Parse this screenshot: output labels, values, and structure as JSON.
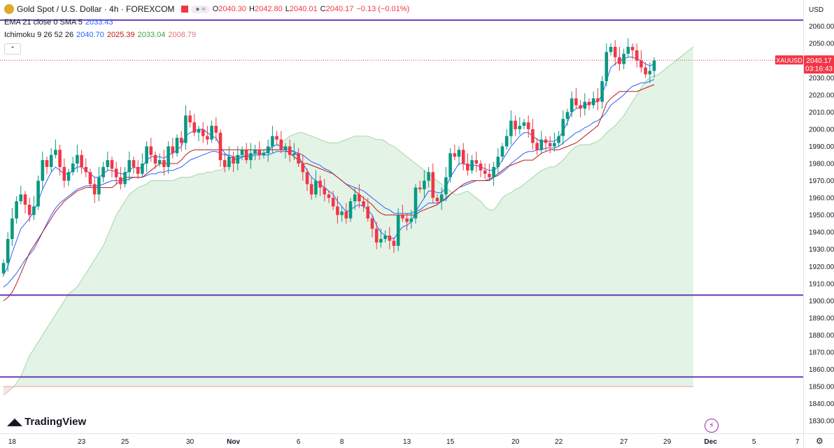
{
  "header": {
    "symbol_title": "Gold Spot / U.S. Dollar · 4h · FOREXCOM",
    "ohlc": {
      "o": "2040.30",
      "h": "2042.80",
      "l": "2040.01",
      "c": "2040.17",
      "change": "−0.13 (−0.01%)"
    },
    "ema_label": "EMA 21 close 0 SMA 5",
    "ema_value": "2033.43",
    "ichimoku_label": "Ichimoku 9 26 52 26",
    "ichimoku_values": [
      "2040.70",
      "2025.39",
      "2033.04",
      "2008.79"
    ],
    "collapse_icon": "chevron-up-icon"
  },
  "brand": {
    "name": "TradingView"
  },
  "axis": {
    "currency": "USD"
  },
  "colors": {
    "up": "#089981",
    "down": "#f23645",
    "ema": "#2962ff",
    "base": "#b71c1c",
    "cloud_bull": "#e3f3e6",
    "cloud_bear": "#fbe3e3",
    "hline": "#673ab7",
    "price_tag": "#f23645"
  },
  "chart_data": {
    "type": "candlestick",
    "symbol": "XAUUSD",
    "last_price": "2040.17",
    "countdown": "03:16:43",
    "ylim": [
      1826,
      2068
    ],
    "yticks": [
      1830,
      1840,
      1850,
      1860,
      1870,
      1880,
      1890,
      1900,
      1910,
      1920,
      1930,
      1940,
      1950,
      1960,
      1970,
      1980,
      1990,
      2000,
      2010,
      2020,
      2030,
      2040,
      2050,
      2060
    ],
    "xticks": [
      {
        "label": "18",
        "bar": 2
      },
      {
        "label": "23",
        "bar": 18
      },
      {
        "label": "25",
        "bar": 28
      },
      {
        "label": "30",
        "bar": 43
      },
      {
        "label": "Nov",
        "bar": 53
      },
      {
        "label": "6",
        "bar": 68
      },
      {
        "label": "8",
        "bar": 78
      },
      {
        "label": "13",
        "bar": 93
      },
      {
        "label": "15",
        "bar": 103
      },
      {
        "label": "20",
        "bar": 118
      },
      {
        "label": "22",
        "bar": 128
      },
      {
        "label": "27",
        "bar": 143
      },
      {
        "label": "29",
        "bar": 153
      },
      {
        "label": "Dec",
        "bar": 163
      },
      {
        "label": "5",
        "bar": 173
      },
      {
        "label": "7",
        "bar": 183
      }
    ],
    "horizontal_lines": [
      {
        "label": "",
        "value": 2063.6
      },
      {
        "label": "1903.32",
        "value": 1903.32
      },
      {
        "label": "1855.57",
        "value": 1855.57
      }
    ],
    "closes": [
      1922,
      1936,
      1948,
      1958,
      1962,
      1956,
      1950,
      1955,
      1970,
      1982,
      1978,
      1985,
      1988,
      1978,
      1970,
      1975,
      1980,
      1985,
      1978,
      1975,
      1968,
      1962,
      1972,
      1978,
      1982,
      1977,
      1972,
      1968,
      1975,
      1982,
      1978,
      1974,
      1980,
      1990,
      1985,
      1980,
      1982,
      1978,
      1990,
      1986,
      1995,
      1992,
      2008,
      2004,
      1998,
      2000,
      1996,
      1994,
      2002,
      1998,
      1982,
      1978,
      1984,
      1980,
      1985,
      1988,
      1982,
      1986,
      1988,
      1985,
      1986,
      1990,
      1996,
      1994,
      1988,
      1990,
      1985,
      1986,
      1980,
      1975,
      1968,
      1962,
      1970,
      1966,
      1962,
      1960,
      1955,
      1950,
      1952,
      1948,
      1958,
      1962,
      1958,
      1955,
      1948,
      1942,
      1934,
      1936,
      1938,
      1935,
      1932,
      1950,
      1948,
      1946,
      1948,
      1966,
      1965,
      1970,
      1975,
      1960,
      1958,
      1962,
      1972,
      1986,
      1984,
      1988,
      1980,
      1976,
      1982,
      1980,
      1976,
      1974,
      1972,
      1978,
      1984,
      1990,
      1996,
      2005,
      2000,
      2002,
      2004,
      2000,
      1992,
      1988,
      1994,
      1992,
      1990,
      1992,
      1996,
      2006,
      2010,
      2018,
      2014,
      2012,
      2016,
      2014,
      2018,
      2016,
      2028,
      2045,
      2048,
      2042,
      2038,
      2044,
      2048,
      2046,
      2040,
      2036,
      2032,
      2034,
      2040
    ],
    "series": [
      {
        "name": "EMA 21",
        "values": [
          1908,
          1910,
          1913,
          1916,
          1920,
          1924,
          1927,
          1930,
          1935,
          1940,
          1945,
          1950,
          1954,
          1957,
          1959,
          1961,
          1963,
          1965,
          1966,
          1967,
          1967,
          1967,
          1967,
          1968,
          1969,
          1970,
          1970,
          1970,
          1970,
          1971,
          1972,
          1972,
          1972,
          1973,
          1974,
          1974,
          1975,
          1975,
          1976,
          1976,
          1977,
          1978,
          1980,
          1982,
          1983,
          1984,
          1985,
          1986,
          1987,
          1987,
          1986,
          1985,
          1985,
          1984,
          1984,
          1984,
          1984,
          1984,
          1985,
          1985,
          1985,
          1985,
          1986,
          1987,
          1987,
          1987,
          1987,
          1987,
          1986,
          1985,
          1983,
          1981,
          1980,
          1979,
          1977,
          1976,
          1974,
          1972,
          1970,
          1968,
          1967,
          1966,
          1965,
          1964,
          1962,
          1960,
          1958,
          1956,
          1954,
          1953,
          1951,
          1951,
          1951,
          1951,
          1951,
          1952,
          1953,
          1955,
          1957,
          1957,
          1957,
          1958,
          1959,
          1962,
          1964,
          1966,
          1967,
          1968,
          1969,
          1970,
          1970,
          1970,
          1971,
          1972,
          1973,
          1975,
          1977,
          1980,
          1982,
          1984,
          1986,
          1987,
          1987,
          1988,
          1988,
          1989,
          1989,
          1989,
          1990,
          1992,
          1994,
          1996,
          1998,
          1999,
          2001,
          2002,
          2004,
          2005,
          2007,
          2010,
          2014,
          2016,
          2018,
          2020,
          2023,
          2025,
          2026,
          2027,
          2027,
          2028,
          2029
        ]
      },
      {
        "name": "Tenkan",
        "values": [
          1915,
          1920,
          1928,
          1935,
          1942,
          1945,
          1948,
          1952,
          1958,
          1965,
          1970,
          1975,
          1978,
          1976,
          1974,
          1974,
          1976,
          1978,
          1978,
          1976,
          1974,
          1972,
          1972,
          1974,
          1976,
          1976,
          1975,
          1974,
          1974,
          1976,
          1978,
          1977,
          1978,
          1982,
          1984,
          1984,
          1984,
          1983,
          1985,
          1986,
          1988,
          1990,
          1996,
          1998,
          1999,
          2000,
          2000,
          1998,
          1996,
          1995,
          1990,
          1986,
          1984,
          1983,
          1982,
          1984,
          1985,
          1985,
          1986,
          1986,
          1986,
          1987,
          1990,
          1991,
          1990,
          1989,
          1988,
          1987,
          1984,
          1980,
          1976,
          1972,
          1970,
          1968,
          1966,
          1964,
          1962,
          1958,
          1955,
          1952,
          1953,
          1955,
          1956,
          1955,
          1953,
          1950,
          1944,
          1940,
          1938,
          1937,
          1936,
          1940,
          1943,
          1944,
          1946,
          1952,
          1956,
          1960,
          1964,
          1964,
          1963,
          1963,
          1966,
          1972,
          1976,
          1980,
          1980,
          1979,
          1979,
          1979,
          1978,
          1977,
          1976,
          1976,
          1978,
          1982,
          1986,
          1990,
          1993,
          1996,
          1998,
          1998,
          1996,
          1994,
          1993,
          1993,
          1993,
          1993,
          1995,
          1999,
          2004,
          2010,
          2012,
          2013,
          2014,
          2015,
          2016,
          2016,
          2020,
          2028,
          2036,
          2038,
          2040,
          2041,
          2042,
          2042,
          2041,
          2040,
          2038,
          2037,
          2038
        ]
      },
      {
        "name": "Kijun",
        "values": [
          1900,
          1902,
          1905,
          1910,
          1916,
          1922,
          1928,
          1932,
          1936,
          1940,
          1944,
          1948,
          1952,
          1955,
          1958,
          1960,
          1962,
          1964,
          1965,
          1966,
          1966,
          1966,
          1966,
          1966,
          1966,
          1966,
          1968,
          1970,
          1972,
          1972,
          1972,
          1972,
          1972,
          1974,
          1976,
          1978,
          1980,
          1980,
          1980,
          1980,
          1980,
          1982,
          1985,
          1987,
          1988,
          1988,
          1988,
          1988,
          1988,
          1988,
          1988,
          1988,
          1988,
          1988,
          1988,
          1988,
          1988,
          1988,
          1988,
          1988,
          1988,
          1988,
          1988,
          1988,
          1988,
          1988,
          1986,
          1984,
          1982,
          1980,
          1980,
          1979,
          1978,
          1977,
          1976,
          1975,
          1974,
          1972,
          1970,
          1968,
          1966,
          1964,
          1962,
          1960,
          1958,
          1956,
          1953,
          1951,
          1950,
          1950,
          1950,
          1950,
          1950,
          1950,
          1950,
          1950,
          1952,
          1953,
          1954,
          1955,
          1956,
          1958,
          1960,
          1962,
          1964,
          1966,
          1968,
          1969,
          1970,
          1970,
          1970,
          1970,
          1970,
          1972,
          1974,
          1976,
          1978,
          1979,
          1980,
          1981,
          1982,
          1982,
          1982,
          1984,
          1986,
          1987,
          1988,
          1988,
          1988,
          1989,
          1990,
          1991,
          1992,
          1994,
          1996,
          1998,
          2000,
          2002,
          2008,
          2015,
          2018,
          2020,
          2022,
          2022,
          2022,
          2022,
          2022,
          2023,
          2024,
          2025,
          2026
        ]
      },
      {
        "name": "Senkou A",
        "values": [
          1845,
          1847,
          1849,
          1852,
          1856,
          1862,
          1868,
          1872,
          1876,
          1880,
          1884,
          1888,
          1892,
          1896,
          1900,
          1904,
          1906,
          1908,
          1912,
          1916,
          1920,
          1924,
          1928,
          1932,
          1938,
          1944,
          1950,
          1954,
          1958,
          1962,
          1964,
          1966,
          1967,
          1968,
          1970,
          1970,
          1970,
          1970,
          1970,
          1970,
          1971,
          1972,
          1972,
          1972,
          1973,
          1974,
          1974,
          1975,
          1975,
          1976,
          1976,
          1978,
          1980,
          1982,
          1984,
          1986,
          1988,
          1988,
          1988,
          1988,
          1988,
          1989,
          1990,
          1991,
          1992,
          1994,
          1996,
          1997,
          1998,
          1998,
          1997,
          1996,
          1995,
          1994,
          1993,
          1992,
          1992,
          1992,
          1993,
          1994,
          1995,
          1996,
          1996,
          1996,
          1996,
          1995,
          1994,
          1994,
          1993,
          1991,
          1990,
          1988,
          1986,
          1984,
          1982,
          1980,
          1978,
          1976,
          1974,
          1972,
          1970,
          1968,
          1966,
          1964,
          1962,
          1962,
          1963,
          1964,
          1962,
          1960,
          1958,
          1955,
          1953,
          1953,
          1956,
          1960,
          1962,
          1963,
          1965,
          1966,
          1968,
          1970,
          1972,
          1974,
          1976,
          1977,
          1978,
          1978,
          1980,
          1982,
          1985,
          1988,
          1990,
          1991,
          1991,
          1991,
          1992,
          1993,
          1995,
          1998,
          2000,
          2002,
          2005,
          2008,
          2012,
          2016,
          2020,
          2024,
          2028,
          2030,
          2031,
          2032,
          2034,
          2036,
          2038,
          2040,
          2042,
          2044,
          2046,
          2048
        ]
      },
      {
        "name": "Senkou B",
        "values": [
          1850,
          1850,
          1850,
          1850,
          1850,
          1850,
          1850,
          1850,
          1850,
          1850,
          1850,
          1850,
          1850,
          1850,
          1850,
          1850,
          1850,
          1850,
          1850,
          1850,
          1850,
          1850,
          1850,
          1850,
          1850,
          1850,
          1850,
          1850,
          1850,
          1850,
          1850,
          1850,
          1850,
          1850,
          1850,
          1850,
          1850,
          1850,
          1850,
          1850,
          1850,
          1850,
          1850,
          1850,
          1850,
          1850,
          1850,
          1850,
          1850,
          1850,
          1850,
          1850,
          1850,
          1850,
          1850,
          1850,
          1850,
          1850,
          1850,
          1850,
          1850,
          1850,
          1850,
          1850,
          1850,
          1850,
          1850,
          1850,
          1850,
          1850,
          1850,
          1850,
          1850,
          1850,
          1850,
          1850,
          1850,
          1850,
          1850,
          1850,
          1850,
          1850,
          1850,
          1850,
          1850,
          1850,
          1850,
          1850,
          1850,
          1850,
          1850,
          1850,
          1850,
          1850,
          1850,
          1850,
          1850,
          1850,
          1850,
          1850,
          1850,
          1850,
          1850,
          1850,
          1850,
          1850,
          1850,
          1850,
          1850,
          1850,
          1850,
          1850,
          1850,
          1850,
          1850,
          1850,
          1850,
          1850,
          1850,
          1850,
          1850,
          1850,
          1850,
          1850,
          1850,
          1850,
          1850,
          1850,
          1850,
          1850,
          1850,
          1850,
          1850,
          1850,
          1850,
          1850,
          1850,
          1850,
          1850,
          1850,
          1850,
          1850,
          1850,
          1850,
          1850,
          1850,
          1850,
          1850,
          1850,
          1850,
          1850,
          1850,
          1850,
          1850,
          1850,
          1850,
          1850,
          1850,
          1850,
          1850,
          1850,
          1850,
          1850,
          1850,
          1850,
          1850,
          1850,
          1850,
          1850,
          1850,
          1850,
          1850,
          1850,
          1850,
          1850,
          1850,
          1850,
          1850,
          1850,
          1850,
          1850,
          1850
        ]
      }
    ]
  }
}
